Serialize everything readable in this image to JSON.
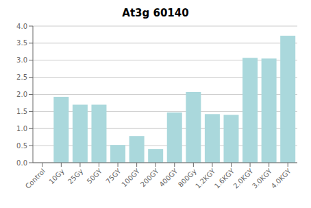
{
  "chart_data": {
    "type": "bar",
    "title": "At3g 60140",
    "categories": [
      "Control",
      "10Gy",
      "25Gy",
      "50GY",
      "75GY",
      "100GY",
      "200GY",
      "400GY",
      "800Gy",
      "1.2KGY",
      "1.6KGY",
      "2.0KGY",
      "3.0KGY",
      "4.0KGY"
    ],
    "values": [
      0.0,
      1.93,
      1.7,
      1.7,
      0.52,
      0.78,
      0.4,
      1.47,
      2.07,
      1.42,
      1.4,
      3.07,
      3.05,
      3.72
    ],
    "color": "#aad8dc",
    "ylim": [
      0,
      4.0
    ],
    "yticks": [
      {
        "value": 0,
        "label": "0.0"
      },
      0.5,
      {
        "value": 1.0,
        "label": "1.0"
      },
      1.5,
      {
        "value": 2.0,
        "label": "2.0"
      },
      2.5,
      {
        "value": 3.0,
        "label": "3.0"
      },
      3.5,
      {
        "value": 4.0,
        "label": "4.0"
      }
    ],
    "grid": true
  }
}
